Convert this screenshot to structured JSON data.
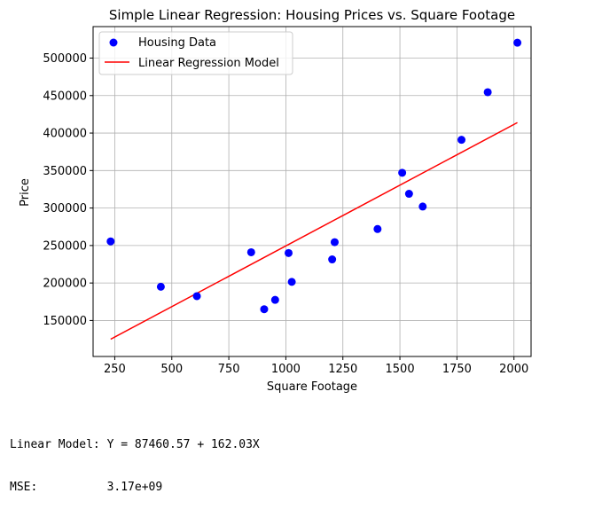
{
  "chart_data": {
    "type": "scatter",
    "title": "Simple Linear Regression: Housing Prices vs. Square Footage",
    "xlabel": "Square Footage",
    "ylabel": "Price",
    "xlim": [
      155,
      2075
    ],
    "ylim": [
      102000,
      542000
    ],
    "xticks": [
      250,
      500,
      750,
      1000,
      1250,
      1500,
      1750,
      2000
    ],
    "xtick_labels": [
      "250",
      "500",
      "750",
      "1000",
      "1250",
      "1500",
      "1750",
      "2000"
    ],
    "yticks": [
      150000,
      200000,
      250000,
      300000,
      350000,
      400000,
      450000,
      500000
    ],
    "ytick_labels": [
      "150000",
      "200000",
      "250000",
      "300000",
      "350000",
      "400000",
      "450000",
      "500000"
    ],
    "grid": true,
    "legend_position": "top-left",
    "series": [
      {
        "name": "Housing Data",
        "kind": "scatter",
        "color": "#0000ff",
        "points": [
          [
            232,
            255500
          ],
          [
            452,
            195000
          ],
          [
            610,
            182500
          ],
          [
            848,
            241000
          ],
          [
            905,
            165000
          ],
          [
            953,
            177500
          ],
          [
            1012,
            240000
          ],
          [
            1026,
            201500
          ],
          [
            1203,
            231500
          ],
          [
            1214,
            254500
          ],
          [
            1402,
            272000
          ],
          [
            1510,
            347000
          ],
          [
            1540,
            319000
          ],
          [
            1600,
            302000
          ],
          [
            1770,
            391000
          ],
          [
            1885,
            454500
          ],
          [
            2015,
            520500
          ]
        ]
      },
      {
        "name": "Linear Regression Model",
        "kind": "line",
        "color": "#ff0000",
        "points": [
          [
            232,
            125052
          ],
          [
            2015,
            413954
          ]
        ]
      }
    ]
  },
  "output": {
    "line1": "Linear Model: Y = 87460.57 + 162.03X",
    "line2": "MSE:          3.17e+09"
  }
}
